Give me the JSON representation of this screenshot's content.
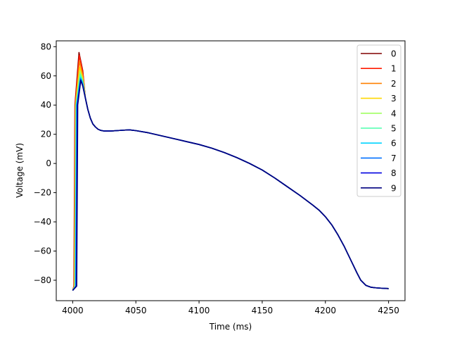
{
  "chart_data": {
    "type": "line",
    "xlabel": "Time (ms)",
    "ylabel": "Voltage (mV)",
    "xlim": [
      3987,
      4263
    ],
    "ylim": [
      -94,
      84
    ],
    "x_ticks": [
      4000,
      4050,
      4100,
      4150,
      4200,
      4250
    ],
    "x_tick_labels": [
      "4000",
      "4050",
      "4100",
      "4150",
      "4200",
      "4250"
    ],
    "y_ticks": [
      -80,
      -60,
      -40,
      -20,
      0,
      20,
      40,
      60,
      80
    ],
    "y_tick_labels": [
      "−80",
      "−60",
      "−40",
      "−20",
      "0",
      "20",
      "40",
      "60",
      "80"
    ],
    "grid": false,
    "legend_position": "top-right",
    "series": [
      {
        "name": "0",
        "color": "#800000",
        "peak": [
          4005.0,
          76
        ],
        "upstroke_t0": 4001.0
      },
      {
        "name": "1",
        "color": "#ff1a00",
        "peak": [
          4005.2,
          74
        ],
        "upstroke_t0": 4001.2
      },
      {
        "name": "2",
        "color": "#ff8000",
        "peak": [
          4005.4,
          70
        ],
        "upstroke_t0": 4001.4
      },
      {
        "name": "3",
        "color": "#ffd700",
        "peak": [
          4005.6,
          66
        ],
        "upstroke_t0": 4001.6
      },
      {
        "name": "4",
        "color": "#a0ff60",
        "peak": [
          4005.8,
          63
        ],
        "upstroke_t0": 4001.8
      },
      {
        "name": "5",
        "color": "#4dffad",
        "peak": [
          4006.0,
          61
        ],
        "upstroke_t0": 4002.0
      },
      {
        "name": "6",
        "color": "#00d4ff",
        "peak": [
          4006.1,
          59
        ],
        "upstroke_t0": 4002.3
      },
      {
        "name": "7",
        "color": "#0070ff",
        "peak": [
          4006.2,
          58
        ],
        "upstroke_t0": 4002.6
      },
      {
        "name": "8",
        "color": "#0000e0",
        "peak": [
          4006.3,
          57
        ],
        "upstroke_t0": 4002.9
      },
      {
        "name": "9",
        "color": "#000080",
        "peak": [
          4006.4,
          57
        ],
        "upstroke_t0": 4003.2
      }
    ],
    "common_repolarization": {
      "x": [
        4008,
        4010,
        4012,
        4014,
        4016,
        4018,
        4020,
        4022,
        4025,
        4030,
        4035,
        4040,
        4045,
        4050,
        4060,
        4070,
        4080,
        4090,
        4100,
        4110,
        4120,
        4130,
        4140,
        4150,
        4160,
        4170,
        4180,
        4190,
        4195,
        4200,
        4205,
        4210,
        4215,
        4220,
        4225,
        4228,
        4232,
        4236,
        4240,
        4245,
        4250
      ],
      "y": [
        54,
        45,
        37,
        31,
        27,
        25,
        23.5,
        22.7,
        22.2,
        22.2,
        22.5,
        22.8,
        23,
        22.5,
        21,
        19,
        17,
        15,
        13,
        10.5,
        7.5,
        4,
        0,
        -4.5,
        -10,
        -16,
        -22,
        -28.5,
        -32,
        -36.5,
        -42,
        -49,
        -57,
        -66,
        -75,
        -80,
        -83.5,
        -84.8,
        -85.2,
        -85.5,
        -85.7
      ]
    }
  }
}
